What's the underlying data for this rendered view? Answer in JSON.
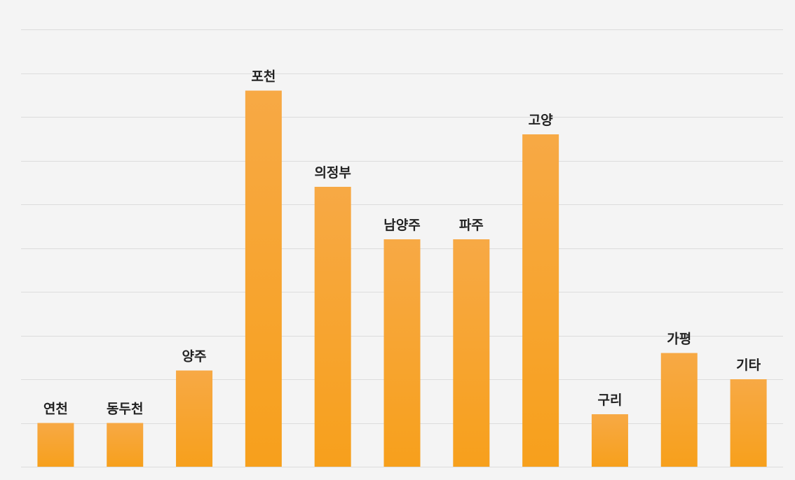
{
  "chart_data": {
    "type": "bar",
    "categories": [
      "연천",
      "동두천",
      "양주",
      "포천",
      "의정부",
      "남양주",
      "파주",
      "고양",
      "구리",
      "가평",
      "기타"
    ],
    "values": [
      1,
      1,
      2.2,
      8.6,
      6.4,
      5.2,
      5.2,
      7.6,
      1.2,
      2.6,
      2
    ],
    "ylim": [
      0,
      10
    ],
    "grid": true,
    "show_axis_labels": false,
    "data_labels": "category-above-bar",
    "colors": {
      "bar_top": "#f7a945",
      "bar_bottom": "#f7a01c",
      "gridline": "#dcdcdc",
      "background": "#f4f4f4",
      "label": "#222222"
    }
  }
}
